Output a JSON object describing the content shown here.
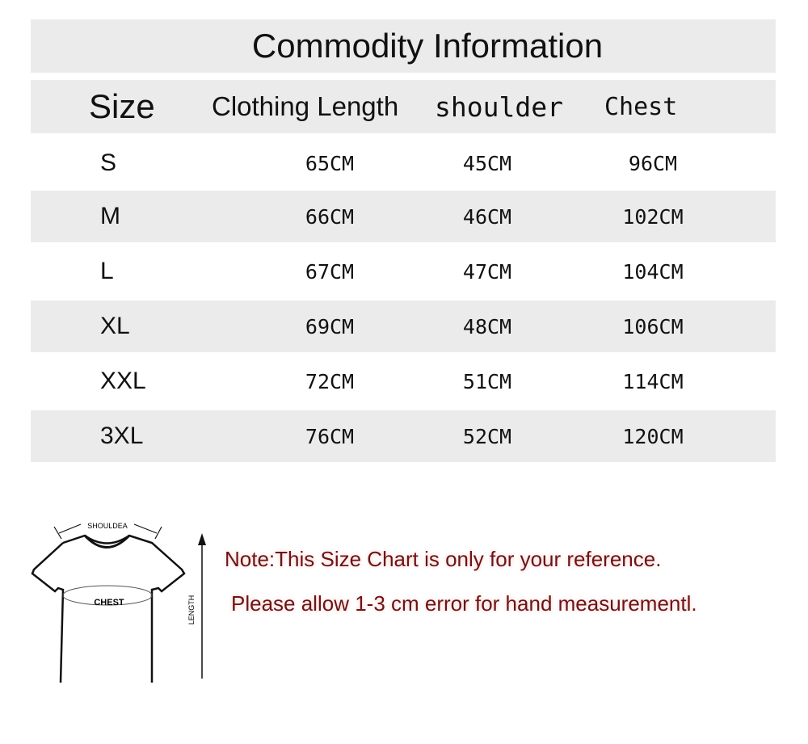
{
  "title": "Commodity Information",
  "headers": [
    "Size",
    "Clothing Length",
    "shoulder",
    "Chest"
  ],
  "rows": [
    [
      "S",
      "65CM",
      "45CM",
      "96CM"
    ],
    [
      "M",
      "66CM",
      "46CM",
      "102CM"
    ],
    [
      "L",
      "67CM",
      "47CM",
      "104CM"
    ],
    [
      "XL",
      "69CM",
      "48CM",
      "106CM"
    ],
    [
      "XXL",
      "72CM",
      "51CM",
      "114CM"
    ],
    [
      "3XL",
      "76CM",
      "52CM",
      "120CM"
    ]
  ],
  "diagram": {
    "shoulder_label": "SHOULDEA",
    "chest_label": "CHEST",
    "length_label": "LENGTH"
  },
  "notes": [
    "Note:This Size Chart is only for your reference.",
    "Please allow 1-3 cm error for hand measurementl."
  ],
  "colors": {
    "band": "#ebebeb",
    "note_text": "#6e1414"
  }
}
